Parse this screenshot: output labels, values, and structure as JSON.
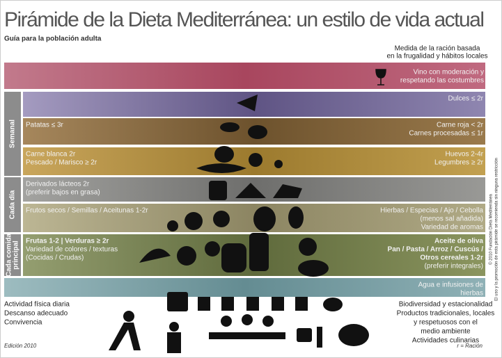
{
  "header": {
    "title": "Pirámide de la Dieta Mediterránea: un estilo de vida actual",
    "subtitle": "Guía para la población adulta",
    "measure_note": [
      "Medida de la ración basada",
      "en la frugalidad y hábitos locales"
    ]
  },
  "wine": [
    "Vino con moderación y",
    "respetando las costumbres"
  ],
  "side_labels": [
    [
      "Semanal"
    ],
    [
      "Cada día"
    ],
    [
      "Cada comida",
      "principal"
    ]
  ],
  "bands": [
    {
      "left": [],
      "right": [
        "Dulces ≤ 2r"
      ]
    },
    {
      "left": [
        "Patatas ≤ 3r"
      ],
      "right": [
        "Carne roja < 2r",
        "Carnes procesadas ≤ 1r"
      ]
    },
    {
      "left": [
        "Carne blanca 2r",
        "Pescado / Marisco ≥ 2r"
      ],
      "right": [
        "Huevos 2-4r",
        "Legumbres ≥ 2r"
      ]
    },
    {
      "left": [
        "Derivados lácteos 2r",
        "(preferir bajos en grasa)"
      ],
      "right": []
    },
    {
      "left": [
        "Frutos secos / Semillas / Aceitunas 1-2r"
      ],
      "right": [
        "Hierbas / Especias / Ajo / Cebolla",
        "(menos sal añadida)",
        "Variedad de aromas"
      ]
    },
    {
      "left_bold": [
        "Frutas 1-2 | Verduras ≥ 2r"
      ],
      "left": [
        "Variedad de colores / texturas",
        "(Cocidas / Crudas)"
      ],
      "right_bold": [
        "Aceite de oliva",
        "Pan / Pasta / Arroz / Cuscús /",
        "Otros cereales 1-2r"
      ],
      "right": [
        "(preferir integrales)"
      ]
    },
    {
      "left": [],
      "right": [
        "Agua e infusiones de",
        "hierbas"
      ]
    }
  ],
  "bottom": {
    "left": [
      "Actividad física diaria",
      "Descanso adecuado",
      "Convivencia"
    ],
    "right": [
      "Biodiversidad y estacionalidad",
      "Productos tradicionales, locales",
      "y respetuosos con el",
      "medio ambiente",
      "Actividades culinarias"
    ]
  },
  "footer": {
    "edition": "Edición 2010",
    "legend": "r = Ración",
    "copyright": [
      "© 2010 Fundación Dieta Mediterránea",
      "El uso y la promoción de esta pirámide se recomienda sin ninguna restricción"
    ]
  }
}
